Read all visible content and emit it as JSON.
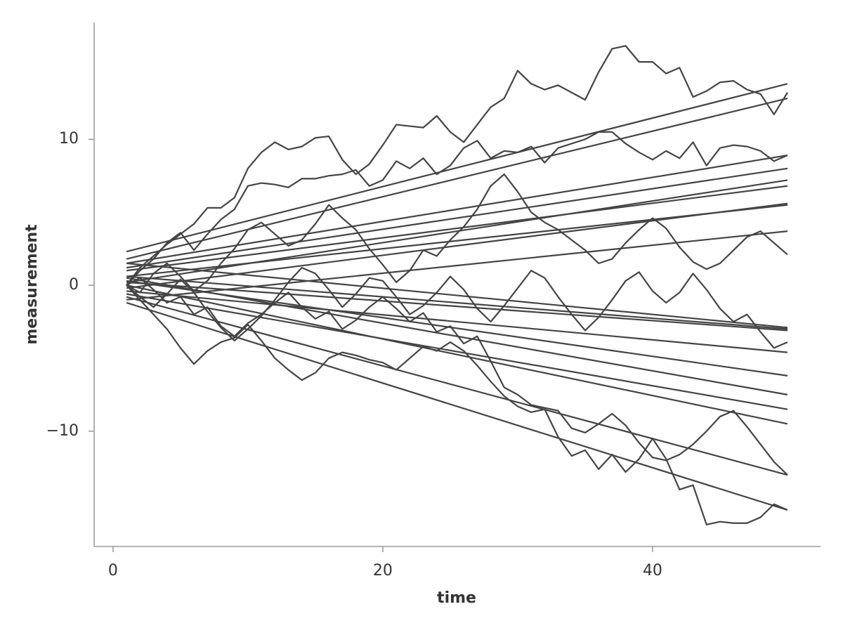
{
  "chart_data": {
    "type": "line",
    "x_label": "time",
    "y_label": "measurement",
    "xlim": [
      -1.4,
      52.45
    ],
    "ylim": [
      -17.9,
      18
    ],
    "xticks": [
      0,
      20,
      40
    ],
    "yticks": [
      {
        "value": -10,
        "label": "−10"
      },
      0,
      10
    ],
    "color": "#444444",
    "x": [
      1,
      2,
      3,
      4,
      5,
      6,
      7,
      8,
      9,
      10,
      11,
      12,
      13,
      14,
      15,
      16,
      17,
      18,
      19,
      20,
      21,
      22,
      23,
      24,
      25,
      26,
      27,
      28,
      29,
      30,
      31,
      32,
      33,
      34,
      35,
      36,
      37,
      38,
      39,
      40,
      41,
      42,
      43,
      44,
      45,
      46,
      47,
      48,
      49,
      50
    ],
    "series": [
      {
        "values": [
          0,
          1.2,
          2.0,
          2.8,
          3.5,
          4.2,
          5.3,
          5.3,
          6.0,
          8.0,
          9.1,
          9.8,
          9.3,
          9.5,
          10.1,
          10.2,
          8.6,
          7.6,
          8.3,
          9.6,
          11.0,
          10.9,
          10.8,
          11.6,
          10.5,
          9.8,
          11.0,
          12.2,
          12.8,
          14.7,
          13.8,
          13.4,
          13.7,
          13.2,
          12.7,
          14.6,
          16.2,
          16.4,
          15.3,
          15.3,
          14.5,
          14.9,
          12.9,
          13.3,
          13.9,
          14.0,
          13.4,
          13.1,
          11.7,
          13.2
        ]
      },
      {
        "values": [
          0,
          -1.0,
          -2.0,
          -3.0,
          -4.3,
          -5.4,
          -4.5,
          -3.9,
          -3.6,
          -2.7,
          -3.8,
          -5.0,
          -5.8,
          -6.5,
          -6.0,
          -5.0,
          -4.6,
          -4.8,
          -5.1,
          -5.3,
          -5.8,
          -5.0,
          -4.2,
          -4.5,
          -3.9,
          -4.5,
          -5.5,
          -6.6,
          -7.6,
          -8.3,
          -8.7,
          -8.5,
          -10.4,
          -11.7,
          -11.3,
          -12.6,
          -11.6,
          -12.8,
          -11.9,
          -10.5,
          -11.9,
          -14.0,
          -13.7,
          -16.4,
          -16.2,
          -16.3,
          -16.3,
          -15.9,
          -15.0,
          -15.4
        ]
      },
      {
        "values": [
          0,
          0.5,
          -0.3,
          -1.2,
          -0.8,
          -2.0,
          -1.5,
          -2.8,
          -3.5,
          -2.6,
          -2.0,
          -1.2,
          -0.5,
          -1.5,
          -2.3,
          -1.8,
          -3.0,
          -2.4,
          -1.5,
          -0.8,
          -1.6,
          -2.5,
          -1.9,
          -3.2,
          -2.8,
          -4.0,
          -3.5,
          -5.2,
          -7.0,
          -7.5,
          -8.2,
          -8.4,
          -8.6,
          -9.8,
          -10.1,
          -9.5,
          -8.8,
          -9.6,
          -10.8,
          -11.8,
          -12.0,
          -11.6,
          -10.9,
          -10.0,
          -9.0,
          -8.6,
          -9.7,
          -10.9,
          -12.1,
          -13.0
        ]
      },
      {
        "values": [
          0,
          1.0,
          1.8,
          2.9,
          3.6,
          2.4,
          3.5,
          4.5,
          5.2,
          6.8,
          7.0,
          6.9,
          6.7,
          7.3,
          7.3,
          7.5,
          7.6,
          7.9,
          6.8,
          7.2,
          8.5,
          8.0,
          8.7,
          7.6,
          8.2,
          9.4,
          9.9,
          8.7,
          9.2,
          9.1,
          9.5,
          8.4,
          9.4,
          9.7,
          10.0,
          10.5,
          10.5,
          9.7,
          9.1,
          8.6,
          9.2,
          8.7,
          9.8,
          8.2,
          9.4,
          9.6,
          9.5,
          9.2,
          8.5,
          8.9
        ]
      },
      {
        "values": [
          0,
          -0.5,
          0.8,
          1.5,
          0.6,
          -0.4,
          0.3,
          1.5,
          2.5,
          3.8,
          4.3,
          3.5,
          2.7,
          3.1,
          4.2,
          5.5,
          4.6,
          3.8,
          2.5,
          1.4,
          0.2,
          1.0,
          2.4,
          2.0,
          3.1,
          4.0,
          5.2,
          6.8,
          7.6,
          6.4,
          5.0,
          4.3,
          3.8,
          3.1,
          2.4,
          1.5,
          1.8,
          2.9,
          3.8,
          4.6,
          3.9,
          2.6,
          1.6,
          1.1,
          1.5,
          2.4,
          3.3,
          3.7,
          2.9,
          2.1
        ]
      },
      {
        "values": [
          0,
          -0.8,
          -1.5,
          -0.6,
          0.4,
          -0.5,
          -1.8,
          -2.9,
          -3.8,
          -3.0,
          -2.1,
          -1.0,
          0.2,
          1.2,
          0.8,
          -0.3,
          -1.5,
          -0.6,
          0.5,
          0.3,
          -0.8,
          -2.0,
          -1.4,
          -0.5,
          0.6,
          -0.3,
          -1.6,
          -2.5,
          -1.4,
          -0.2,
          1.0,
          0.5,
          -0.8,
          -2.0,
          -3.1,
          -2.2,
          -1.0,
          0.3,
          0.9,
          -0.4,
          -1.2,
          -0.5,
          0.8,
          -0.3,
          -1.6,
          -2.5,
          -2.0,
          -3.2,
          -4.3,
          -3.9
        ]
      }
    ],
    "fit_lines": {
      "x": [
        1,
        50
      ],
      "series": [
        {
          "values": [
            2.3,
            13.8
          ]
        },
        {
          "values": [
            1.8,
            12.8
          ]
        },
        {
          "values": [
            1.5,
            8.9
          ]
        },
        {
          "values": [
            1.2,
            8.0
          ]
        },
        {
          "values": [
            0.2,
            7.2
          ]
        },
        {
          "values": [
            1.0,
            6.8
          ]
        },
        {
          "values": [
            -0.2,
            5.6
          ]
        },
        {
          "values": [
            0.6,
            5.5
          ]
        },
        {
          "values": [
            -1.0,
            3.7
          ]
        },
        {
          "values": [
            1.5,
            -2.9
          ]
        },
        {
          "values": [
            0.6,
            -3.0
          ]
        },
        {
          "values": [
            0.2,
            -3.1
          ]
        },
        {
          "values": [
            -0.4,
            -4.6
          ]
        },
        {
          "values": [
            0.3,
            -6.2
          ]
        },
        {
          "values": [
            0.5,
            -7.5
          ]
        },
        {
          "values": [
            -0.6,
            -8.5
          ]
        },
        {
          "values": [
            0.0,
            -9.5
          ]
        },
        {
          "values": [
            -0.8,
            -13.0
          ]
        },
        {
          "values": [
            -1.2,
            -15.4
          ]
        }
      ]
    }
  }
}
